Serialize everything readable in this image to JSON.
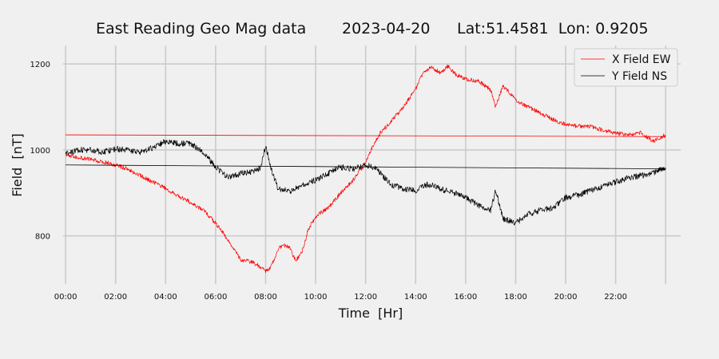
{
  "chart_data": {
    "type": "line",
    "title_parts": [
      "East Reading Geo Mag data",
      "2023-04-20",
      "Lat:51.4581  Lon: 0.9205"
    ],
    "xlabel": "Time  [Hr]",
    "ylabel": "Field  [nT]",
    "xlim": [
      -0.1,
      24.6
    ],
    "ylim": [
      688,
      1243
    ],
    "x_ticks": [
      0,
      2,
      4,
      6,
      8,
      10,
      12,
      14,
      16,
      18,
      20,
      22
    ],
    "x_tick_labels": [
      "00:00",
      "02:00",
      "04:00",
      "06:00",
      "08:00",
      "10:00",
      "12:00",
      "14:00",
      "16:00",
      "18:00",
      "20:00",
      "22:00"
    ],
    "x_grid_extra": [
      24
    ],
    "y_ticks": [
      800,
      1000,
      1200
    ],
    "y_tick_labels": [
      "800",
      "1000",
      "1200"
    ],
    "grid": true,
    "legend_position": "top-right",
    "series": [
      {
        "name": "X Field EW",
        "color": "#ff0000",
        "noise": 5,
        "x": [
          0,
          0.5,
          1,
          1.5,
          2,
          2.5,
          3,
          3.5,
          4,
          4.5,
          5,
          5.5,
          6,
          6.5,
          7,
          7.5,
          7.8,
          8,
          8.2,
          8.5,
          8.7,
          9,
          9.2,
          9.5,
          9.7,
          10,
          10.5,
          11,
          11.5,
          12,
          12.3,
          12.6,
          13,
          13.5,
          14,
          14.3,
          14.6,
          15,
          15.3,
          15.6,
          16,
          16.5,
          17,
          17.2,
          17.5,
          17.8,
          18,
          18.5,
          19,
          19.5,
          20,
          20.5,
          21,
          21.5,
          22,
          22.5,
          23,
          23.5,
          24
        ],
        "y": [
          988,
          982,
          978,
          972,
          965,
          955,
          940,
          925,
          910,
          893,
          878,
          860,
          830,
          790,
          745,
          738,
          728,
          718,
          725,
          770,
          780,
          770,
          740,
          770,
          815,
          845,
          865,
          900,
          930,
          970,
          1010,
          1040,
          1065,
          1100,
          1140,
          1180,
          1192,
          1180,
          1195,
          1175,
          1165,
          1160,
          1140,
          1100,
          1150,
          1130,
          1115,
          1100,
          1085,
          1070,
          1060,
          1055,
          1055,
          1045,
          1040,
          1035,
          1040,
          1020,
          1035
        ]
      },
      {
        "name": "Y Field NS",
        "color": "#000000",
        "noise": 7,
        "x": [
          0,
          0.5,
          1,
          1.5,
          2,
          2.5,
          3,
          3.5,
          4,
          4.5,
          5,
          5.5,
          6,
          6.5,
          7,
          7.5,
          7.8,
          8,
          8.2,
          8.5,
          9,
          9.5,
          10,
          10.5,
          11,
          11.5,
          12,
          12.3,
          12.6,
          13,
          13.5,
          14,
          14.5,
          15,
          15.5,
          16,
          16.5,
          17,
          17.2,
          17.5,
          18,
          18.5,
          19,
          19.5,
          20,
          20.5,
          21,
          21.5,
          22,
          22.5,
          23,
          23.5,
          24
        ],
        "y": [
          990,
          1000,
          1000,
          995,
          1002,
          1000,
          995,
          1005,
          1020,
          1015,
          1015,
          995,
          960,
          935,
          945,
          948,
          960,
          1010,
          960,
          910,
          905,
          920,
          930,
          945,
          960,
          955,
          965,
          960,
          945,
          920,
          910,
          905,
          920,
          910,
          900,
          890,
          870,
          860,
          905,
          840,
          830,
          850,
          860,
          865,
          890,
          895,
          905,
          915,
          925,
          935,
          940,
          945,
          960
        ]
      },
      {
        "name": "",
        "color": "#ff0000",
        "noise": 0,
        "x": [
          0,
          24
        ],
        "y": [
          1035,
          1031
        ]
      },
      {
        "name": "",
        "color": "#000000",
        "noise": 0,
        "x": [
          0,
          24
        ],
        "y": [
          965,
          956
        ]
      }
    ]
  }
}
